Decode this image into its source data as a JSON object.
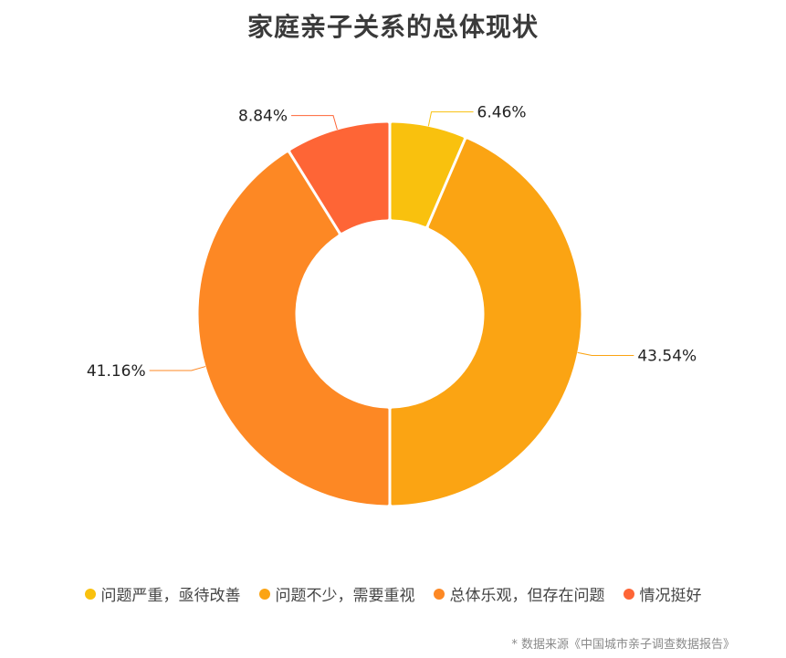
{
  "chart_data": {
    "type": "pie",
    "title": "家庭亲子关系的总体现状",
    "categories": [
      "问题严重，亟待改善",
      "问题不少，需要重视",
      "总体乐观，但存在问题",
      "情况挺好"
    ],
    "values": [
      6.46,
      43.54,
      41.16,
      8.84
    ],
    "value_labels": [
      "6.46%",
      "43.54%",
      "41.16%",
      "8.84%"
    ],
    "colors": [
      "#F9C10E",
      "#FBA413",
      "#FD8824",
      "#FE6536"
    ],
    "legend_position": "bottom",
    "source": "* 数据来源《中国城市亲子调查数据报告》"
  }
}
